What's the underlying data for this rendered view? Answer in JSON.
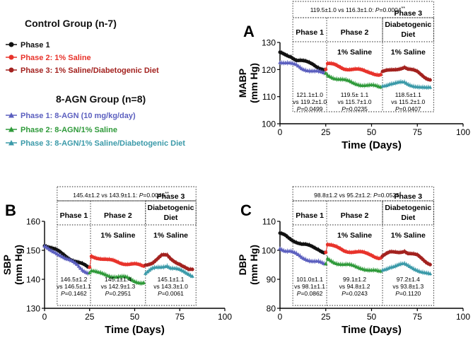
{
  "colors": {
    "control_p1": "#111111",
    "control_p2": "#e8332b",
    "control_p3": "#a3221f",
    "agn_p1": "#5b5fbf",
    "agn_p2": "#2f9a3a",
    "agn_p3": "#3b9aa9"
  },
  "legend": {
    "control_title": "Control Group (n-7)",
    "control_items": [
      {
        "label": "Phase 1",
        "color": "#111111",
        "marker": "circle"
      },
      {
        "label": "Phase 2: 1% Saline",
        "color": "#e8332b",
        "marker": "circle"
      },
      {
        "label": "Phase 3: 1% Saline/Diabetogenic Diet",
        "color": "#a3221f",
        "marker": "circle"
      }
    ],
    "agn_title": "8-AGN Group (n=8)",
    "agn_items": [
      {
        "label": "Phase 1: 8-AGN (10 mg/kg/day)",
        "color": "#5b5fbf",
        "marker": "triangle"
      },
      {
        "label": "Phase 2: 8-AGN/1% Saline",
        "color": "#2f9a3a",
        "marker": "triangle"
      },
      {
        "label": "Phase 3: 8-AGN/1% Saline/Diabetogenic Diet",
        "color": "#3b9aa9",
        "marker": "triangle"
      }
    ]
  },
  "chart_data": [
    {
      "panel": "A",
      "type": "line",
      "ylabel_1": "MABP",
      "ylabel_2": "(mm Hg)",
      "xlabel": "Time (Days)",
      "ylim": [
        100,
        130
      ],
      "yticks": [
        100,
        110,
        120,
        130
      ],
      "xlim": [
        0,
        100
      ],
      "xticks": [
        0,
        25,
        50,
        75,
        100
      ],
      "overall_text": "119.5±1.0 vs 116.3±1.0: ",
      "overall_p_label": "P",
      "overall_p_value": "=0.0004",
      "overall_stars": "**",
      "phase_titles": [
        [
          "Phase 1"
        ],
        [
          "Phase 2"
        ],
        [
          "Phase 3"
        ]
      ],
      "phase_subtitles": [
        [],
        [
          "1% Saline"
        ],
        [
          "Diabetogenic",
          "Diet",
          "1% Saline"
        ]
      ],
      "phase_stats": [
        [
          "121.1±1.0",
          "vs 119.2±1.0",
          "=0.0499"
        ],
        [
          "119.5± 1.1",
          "vs 115.7±1.0",
          "=0.0235"
        ],
        [
          "118.5±1.1",
          "vs 115.2±1.0",
          "=0.0407"
        ]
      ],
      "series": [
        {
          "name": "Control",
          "knots": [
            [
              0,
              126
            ],
            [
              3,
              125.5
            ],
            [
              6,
              125
            ],
            [
              9,
              123.5
            ],
            [
              12,
              123
            ],
            [
              15,
              122.5
            ],
            [
              18,
              122
            ],
            [
              21,
              121
            ],
            [
              24,
              120
            ],
            [
              25,
              120
            ],
            [
              26,
              122
            ],
            [
              30,
              121.5
            ],
            [
              35,
              120.5
            ],
            [
              40,
              120
            ],
            [
              45,
              119.5
            ],
            [
              50,
              119
            ],
            [
              54,
              118
            ],
            [
              55,
              118
            ],
            [
              56,
              119
            ],
            [
              60,
              119.5
            ],
            [
              65,
              120.5
            ],
            [
              68,
              121
            ],
            [
              70,
              120
            ],
            [
              75,
              119
            ],
            [
              80,
              117
            ],
            [
              82,
              116.5
            ]
          ]
        },
        {
          "name": "8-AGN",
          "knots": [
            [
              0,
              123
            ],
            [
              3,
              122.5
            ],
            [
              6,
              122
            ],
            [
              9,
              121.5
            ],
            [
              12,
              120.5
            ],
            [
              15,
              120
            ],
            [
              18,
              119.5
            ],
            [
              21,
              119
            ],
            [
              24,
              118.5
            ],
            [
              25,
              118.5
            ],
            [
              26,
              118
            ],
            [
              30,
              117
            ],
            [
              35,
              116
            ],
            [
              40,
              115
            ],
            [
              45,
              114.5
            ],
            [
              50,
              114
            ],
            [
              54,
              113.5
            ],
            [
              55,
              113.5
            ],
            [
              56,
              114
            ],
            [
              60,
              115
            ],
            [
              65,
              115
            ],
            [
              68,
              115
            ],
            [
              70,
              114.5
            ],
            [
              75,
              114
            ],
            [
              80,
              113
            ],
            [
              82,
              113
            ]
          ]
        }
      ]
    },
    {
      "panel": "B",
      "type": "line",
      "ylabel_1": "SBP",
      "ylabel_2": "(mm Hg)",
      "xlabel": "Time (Days)",
      "ylim": [
        130,
        160
      ],
      "yticks": [
        130,
        140,
        150,
        160
      ],
      "xlim": [
        0,
        100
      ],
      "xticks": [
        0,
        25,
        50,
        75,
        100
      ],
      "overall_text": "145.4±1.2 vs 143.9±1.1: ",
      "overall_p_label": "P",
      "overall_p_value": "=0.0046",
      "overall_stars": "**",
      "phase_titles": [
        [
          "Phase 1"
        ],
        [
          "Phase 2"
        ],
        [
          "Phase 3"
        ]
      ],
      "phase_subtitles": [
        [],
        [
          "1% Saline"
        ],
        [
          "Diabetogenic",
          "Diet",
          "1% Saline"
        ]
      ],
      "phase_stats": [
        [
          "146.5±1.2",
          "vs 146.5±1.1",
          "=0.1462"
        ],
        [
          "145.1±1.4",
          "vs 142.9±1.3",
          "=0.2951"
        ],
        [
          "145.1±1.1",
          "vs 143.3±1.0",
          "=0.0061"
        ]
      ],
      "series": [
        {
          "name": "Control",
          "knots": [
            [
              0,
              152
            ],
            [
              3,
              151
            ],
            [
              6,
              150
            ],
            [
              9,
              149
            ],
            [
              12,
              148
            ],
            [
              15,
              147
            ],
            [
              18,
              146
            ],
            [
              21,
              145
            ],
            [
              24,
              144
            ],
            [
              25,
              144
            ],
            [
              26,
              148
            ],
            [
              30,
              147.5
            ],
            [
              35,
              146.5
            ],
            [
              40,
              146
            ],
            [
              45,
              145.5
            ],
            [
              50,
              145
            ],
            [
              54,
              144.5
            ],
            [
              55,
              144.5
            ],
            [
              56,
              145
            ],
            [
              60,
              146
            ],
            [
              65,
              148
            ],
            [
              68,
              148
            ],
            [
              70,
              147
            ],
            [
              75,
              145.5
            ],
            [
              80,
              143
            ],
            [
              82,
              143
            ]
          ]
        },
        {
          "name": "8-AGN",
          "knots": [
            [
              0,
              151
            ],
            [
              3,
              150
            ],
            [
              6,
              149.5
            ],
            [
              9,
              148.5
            ],
            [
              12,
              147
            ],
            [
              15,
              146
            ],
            [
              18,
              145
            ],
            [
              21,
              143.5
            ],
            [
              24,
              142.5
            ],
            [
              25,
              142.5
            ],
            [
              26,
              143
            ],
            [
              30,
              142
            ],
            [
              35,
              141.5
            ],
            [
              40,
              141
            ],
            [
              45,
              140.5
            ],
            [
              50,
              139.5
            ],
            [
              54,
              139
            ],
            [
              55,
              139
            ],
            [
              56,
              142
            ],
            [
              60,
              143.5
            ],
            [
              65,
              144.5
            ],
            [
              68,
              145
            ],
            [
              70,
              144
            ],
            [
              75,
              143
            ],
            [
              80,
              142
            ],
            [
              82,
              141.5
            ]
          ]
        }
      ]
    },
    {
      "panel": "C",
      "type": "line",
      "ylabel_1": "DBP",
      "ylabel_2": "(mm Hg)",
      "xlabel": "Time (Days)",
      "ylim": [
        80,
        110
      ],
      "yticks": [
        80,
        90,
        100,
        110
      ],
      "xlim": [
        0,
        100
      ],
      "xticks": [
        0,
        25,
        50,
        75,
        100
      ],
      "overall_text": "98.8±1.2 vs 95.2±1.2: ",
      "overall_p_label": "P",
      "overall_p_value": "=0.0525",
      "overall_stars": "*",
      "phase_titles": [
        [
          "Phase 1"
        ],
        [
          "Phase 2"
        ],
        [
          "Phase 3"
        ]
      ],
      "phase_subtitles": [
        [],
        [
          "1% Saline"
        ],
        [
          "Diabetogenic",
          "Diet",
          "1% Saline"
        ]
      ],
      "phase_stats": [
        [
          "101.0±1.1",
          "vs 98.1±1.1",
          "=0.0862"
        ],
        [
          "99.1±1.2",
          "vs 94.8±1.2",
          "=0.0243"
        ],
        [
          "97.2±1.4",
          "vs 93.8±1.3",
          "=0.1120"
        ]
      ],
      "series": [
        {
          "name": "Control",
          "knots": [
            [
              0,
              105.5
            ],
            [
              3,
              105
            ],
            [
              6,
              104
            ],
            [
              9,
              103
            ],
            [
              12,
              102
            ],
            [
              15,
              101.5
            ],
            [
              18,
              101
            ],
            [
              21,
              100.5
            ],
            [
              24,
              99.5
            ],
            [
              25,
              99.5
            ],
            [
              26,
              102
            ],
            [
              30,
              101
            ],
            [
              35,
              100
            ],
            [
              40,
              99.5
            ],
            [
              45,
              99
            ],
            [
              50,
              98.5
            ],
            [
              54,
              97.5
            ],
            [
              55,
              97.5
            ],
            [
              56,
              98
            ],
            [
              60,
              99
            ],
            [
              65,
              99.5
            ],
            [
              68,
              100
            ],
            [
              70,
              99
            ],
            [
              75,
              98
            ],
            [
              80,
              96
            ],
            [
              82,
              95.5
            ]
          ]
        },
        {
          "name": "8-AGN",
          "knots": [
            [
              0,
              101
            ],
            [
              3,
              100
            ],
            [
              6,
              99.5
            ],
            [
              9,
              98.5
            ],
            [
              12,
              97.5
            ],
            [
              15,
              97
            ],
            [
              18,
              96.5
            ],
            [
              21,
              96
            ],
            [
              24,
              95
            ],
            [
              25,
              95
            ],
            [
              26,
              97
            ],
            [
              30,
              96
            ],
            [
              35,
              95
            ],
            [
              40,
              94.5
            ],
            [
              45,
              94
            ],
            [
              50,
              93
            ],
            [
              54,
              92.5
            ],
            [
              55,
              92.5
            ],
            [
              56,
              93
            ],
            [
              60,
              94.5
            ],
            [
              65,
              95
            ],
            [
              68,
              95
            ],
            [
              70,
              94.5
            ],
            [
              75,
              93.5
            ],
            [
              80,
              92
            ],
            [
              82,
              91.5
            ]
          ]
        }
      ]
    }
  ]
}
